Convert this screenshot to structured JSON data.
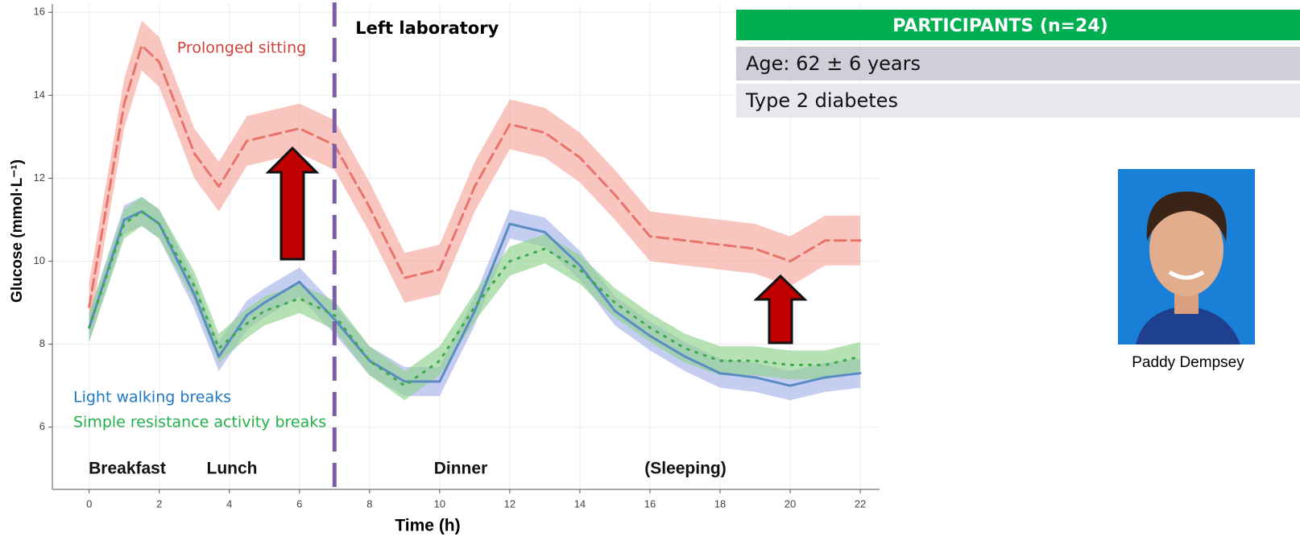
{
  "chart_data": {
    "type": "line",
    "x_label": "Time (h)",
    "y_label": "Glucose (mmol·L⁻¹)",
    "x": [
      0,
      1,
      1.5,
      2,
      3,
      3.7,
      4.5,
      5,
      6,
      7,
      8,
      9,
      10,
      11,
      12,
      13,
      14,
      15,
      16,
      17,
      18,
      19,
      20,
      21,
      22
    ],
    "series": [
      {
        "name": "Prolonged sitting",
        "color": "#e8736b",
        "band_color": "#f6a79d",
        "legend_color": "#d0403a",
        "dash": "dashed",
        "values": [
          8.9,
          13.8,
          15.2,
          14.8,
          12.6,
          11.8,
          12.9,
          13.0,
          13.2,
          12.8,
          11.3,
          9.6,
          9.8,
          11.8,
          13.3,
          13.1,
          12.5,
          11.6,
          10.6,
          10.5,
          10.4,
          10.3,
          10.0,
          10.5,
          10.5
        ],
        "lower": [
          8.3,
          13.2,
          14.6,
          14.2,
          12.0,
          11.2,
          12.3,
          12.4,
          12.6,
          12.2,
          10.7,
          9.0,
          9.2,
          11.2,
          12.7,
          12.5,
          11.9,
          11.0,
          10.0,
          9.9,
          9.8,
          9.7,
          9.4,
          9.9,
          9.9
        ],
        "upper": [
          9.5,
          14.4,
          15.8,
          15.4,
          13.2,
          12.4,
          13.5,
          13.6,
          13.8,
          13.4,
          11.9,
          10.2,
          10.4,
          12.4,
          13.9,
          13.7,
          13.1,
          12.2,
          11.2,
          11.1,
          11.0,
          10.9,
          10.6,
          11.1,
          11.1
        ]
      },
      {
        "name": "Light walking breaks",
        "color": "#5a8cc4",
        "band_color": "#a6b4e8",
        "legend_color": "#1f77c4",
        "dash": "solid",
        "values": [
          8.4,
          11.0,
          11.2,
          10.9,
          9.2,
          7.7,
          8.7,
          9.0,
          9.5,
          8.6,
          7.6,
          7.1,
          7.1,
          8.8,
          10.9,
          10.7,
          9.9,
          8.8,
          8.2,
          7.7,
          7.3,
          7.2,
          7.0,
          7.2,
          7.3
        ],
        "lower": [
          8.05,
          10.65,
          10.85,
          10.55,
          8.85,
          7.35,
          8.35,
          8.65,
          9.15,
          8.25,
          7.25,
          6.75,
          6.75,
          8.45,
          10.55,
          10.35,
          9.55,
          8.45,
          7.85,
          7.35,
          6.95,
          6.85,
          6.65,
          6.85,
          6.95
        ],
        "upper": [
          8.75,
          11.35,
          11.55,
          11.25,
          9.55,
          8.05,
          9.05,
          9.35,
          9.85,
          8.95,
          7.95,
          7.45,
          7.45,
          9.15,
          11.25,
          11.05,
          10.25,
          9.15,
          8.55,
          8.05,
          7.65,
          7.55,
          7.35,
          7.55,
          7.65
        ]
      },
      {
        "name": "Simple resistance activity breaks",
        "color": "#3daa4a",
        "band_color": "#8fd18d",
        "legend_color": "#22b04b",
        "dash": "dotted",
        "values": [
          8.4,
          10.9,
          11.2,
          10.9,
          9.4,
          7.9,
          8.5,
          8.8,
          9.1,
          8.7,
          7.6,
          7.0,
          7.6,
          8.9,
          10.0,
          10.3,
          9.8,
          9.0,
          8.4,
          7.9,
          7.6,
          7.6,
          7.5,
          7.5,
          7.7
        ],
        "lower": [
          8.05,
          10.55,
          10.85,
          10.55,
          9.05,
          7.55,
          8.15,
          8.45,
          8.75,
          8.35,
          7.25,
          6.65,
          7.25,
          8.55,
          9.65,
          9.95,
          9.45,
          8.65,
          8.05,
          7.55,
          7.25,
          7.25,
          7.15,
          7.15,
          7.35
        ],
        "upper": [
          8.75,
          11.25,
          11.55,
          11.25,
          9.75,
          8.25,
          8.85,
          9.15,
          9.45,
          9.05,
          7.95,
          7.35,
          7.95,
          9.25,
          10.35,
          10.65,
          10.15,
          9.35,
          8.75,
          8.25,
          7.95,
          7.95,
          7.85,
          7.85,
          8.05
        ]
      }
    ],
    "xlim": [
      -1.05,
      22.55
    ],
    "ylim": [
      4.5,
      16.2
    ],
    "xticks": [
      0,
      2,
      4,
      6,
      8,
      10,
      12,
      14,
      16,
      18,
      20,
      22
    ],
    "yticks": [
      6,
      8,
      10,
      12,
      14,
      16
    ],
    "grid": true,
    "vline": {
      "value": 7,
      "label": "Left laboratory",
      "color": "#7b5ea7"
    },
    "annotations": [
      "Breakfast",
      "Lunch",
      "Dinner",
      "(Sleeping)"
    ]
  },
  "panel": {
    "title": "PARTICIPANTS (n=24)",
    "rows": [
      "Age: 62 ± 6 years",
      "Type 2 diabetes"
    ]
  },
  "photo": {
    "caption": "Paddy Dempsey"
  }
}
